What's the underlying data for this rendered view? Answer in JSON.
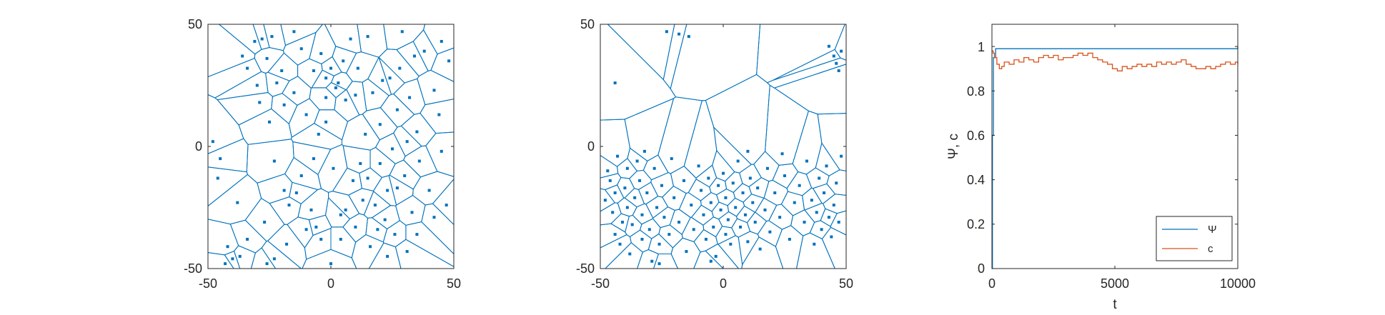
{
  "colors": {
    "blue": "#0072BD",
    "orange": "#D95319",
    "axis": "#262626"
  },
  "chart_data": [
    {
      "type": "scatter",
      "subtype": "voronoi",
      "title": "",
      "xlabel": "",
      "ylabel": "",
      "xlim": [
        -50,
        50
      ],
      "ylim": [
        -50,
        50
      ],
      "xticks": [
        "-50",
        "0",
        "50"
      ],
      "yticks": [
        "-50",
        "0",
        "50"
      ],
      "points": [
        [
          -48,
          2
        ],
        [
          -46,
          -13
        ],
        [
          -45,
          -5
        ],
        [
          -43,
          -48
        ],
        [
          -42,
          -41
        ],
        [
          -40,
          -46
        ],
        [
          -37,
          -45
        ],
        [
          -36,
          37
        ],
        [
          -34,
          32
        ],
        [
          -31,
          43
        ],
        [
          -30,
          25
        ],
        [
          -28,
          44
        ],
        [
          -29,
          18
        ],
        [
          -26,
          -48
        ],
        [
          -25,
          10
        ],
        [
          -26,
          36
        ],
        [
          -24,
          45
        ],
        [
          -23,
          -6
        ],
        [
          -23,
          -46
        ],
        [
          -22,
          26
        ],
        [
          -20,
          31
        ],
        [
          -19,
          17
        ],
        [
          -19,
          -18
        ],
        [
          -17,
          -24
        ],
        [
          -15,
          47
        ],
        [
          -15,
          22
        ],
        [
          -14,
          -19
        ],
        [
          -12,
          40
        ],
        [
          -10,
          13
        ],
        [
          -10,
          -34
        ],
        [
          -8,
          -26
        ],
        [
          -7,
          31
        ],
        [
          -6,
          -33
        ],
        [
          -4,
          38
        ],
        [
          -5,
          5
        ],
        [
          -4,
          -38
        ],
        [
          -2,
          20
        ],
        [
          -2,
          28
        ],
        [
          0,
          32
        ],
        [
          1,
          -9
        ],
        [
          2,
          24
        ],
        [
          3,
          26
        ],
        [
          4,
          -28
        ],
        [
          4,
          -38
        ],
        [
          5,
          35
        ],
        [
          6,
          19
        ],
        [
          6,
          -26
        ],
        [
          8,
          44
        ],
        [
          9,
          -14
        ],
        [
          10,
          -33
        ],
        [
          10,
          21
        ],
        [
          11,
          32
        ],
        [
          12,
          -7
        ],
        [
          13,
          -22
        ],
        [
          15,
          -13
        ],
        [
          15,
          45
        ],
        [
          16,
          -41
        ],
        [
          17,
          22
        ],
        [
          18,
          -24
        ],
        [
          19,
          -34
        ],
        [
          20,
          9
        ],
        [
          20,
          -7
        ],
        [
          21,
          27
        ],
        [
          22,
          -30
        ],
        [
          23,
          -45
        ],
        [
          24,
          28
        ],
        [
          25,
          -1
        ],
        [
          26,
          -36
        ],
        [
          27,
          -17
        ],
        [
          28,
          32
        ],
        [
          29,
          47
        ],
        [
          30,
          -12
        ],
        [
          31,
          2
        ],
        [
          32,
          20
        ],
        [
          33,
          -27
        ],
        [
          34,
          37
        ],
        [
          35,
          6
        ],
        [
          35,
          -36
        ],
        [
          36,
          -6
        ],
        [
          38,
          39
        ],
        [
          40,
          -18
        ],
        [
          42,
          23
        ],
        [
          42,
          -29
        ],
        [
          45,
          -2
        ],
        [
          45,
          43
        ],
        [
          47,
          -24
        ],
        [
          48,
          35
        ],
        [
          -34,
          -38
        ],
        [
          -38,
          -23
        ],
        [
          -12,
          -12
        ],
        [
          27,
          15
        ],
        [
          -27,
          -31
        ],
        [
          14,
          5
        ],
        [
          -7,
          -5
        ],
        [
          44,
          13
        ],
        [
          0,
          -48
        ],
        [
          -18,
          -40
        ],
        [
          -2,
          10
        ],
        [
          23,
          -18
        ],
        [
          31,
          -43
        ]
      ]
    },
    {
      "type": "scatter",
      "subtype": "voronoi",
      "title": "",
      "xlabel": "",
      "ylabel": "",
      "xlim": [
        -50,
        50
      ],
      "ylim": [
        -50,
        50
      ],
      "xticks": [
        "-50",
        "0",
        "50"
      ],
      "yticks": [
        "-50",
        "0",
        "50"
      ],
      "points": [
        [
          -48,
          -22
        ],
        [
          -47,
          -10
        ],
        [
          -46,
          -14
        ],
        [
          -45,
          -27
        ],
        [
          -44,
          -36
        ],
        [
          -44,
          -19
        ],
        [
          -43,
          -4
        ],
        [
          -42,
          -40
        ],
        [
          -41,
          -31
        ],
        [
          -40,
          -17
        ],
        [
          -39,
          -9
        ],
        [
          -39,
          -25
        ],
        [
          -38,
          -44
        ],
        [
          -37,
          -32
        ],
        [
          -36,
          -21
        ],
        [
          -35,
          -6
        ],
        [
          -34,
          -14
        ],
        [
          -33,
          -38
        ],
        [
          -33,
          -28
        ],
        [
          -31,
          -19
        ],
        [
          -30,
          -34
        ],
        [
          -29,
          -47
        ],
        [
          -28,
          -9
        ],
        [
          -27,
          -25
        ],
        [
          -26,
          -40
        ],
        [
          -25,
          -16
        ],
        [
          -24,
          -29
        ],
        [
          -22,
          -36
        ],
        [
          -21,
          -5
        ],
        [
          -20,
          -21
        ],
        [
          -18,
          -31
        ],
        [
          -16,
          -14
        ],
        [
          -15,
          -43
        ],
        [
          -13,
          -24
        ],
        [
          -12,
          -34
        ],
        [
          -10,
          -8
        ],
        [
          -9,
          -18
        ],
        [
          -8,
          -28
        ],
        [
          -7,
          -38
        ],
        [
          -6,
          -13
        ],
        [
          -5,
          -23
        ],
        [
          -4,
          -33
        ],
        [
          -3,
          -45
        ],
        [
          -2,
          -16
        ],
        [
          -1,
          -26
        ],
        [
          0,
          -11
        ],
        [
          1,
          -36
        ],
        [
          1,
          -21
        ],
        [
          2,
          -30
        ],
        [
          3,
          -40
        ],
        [
          4,
          -15
        ],
        [
          5,
          -25
        ],
        [
          6,
          -6
        ],
        [
          7,
          -33
        ],
        [
          8,
          -19
        ],
        [
          9,
          -28
        ],
        [
          10,
          -39
        ],
        [
          11,
          -13
        ],
        [
          12,
          -23
        ],
        [
          13,
          -31
        ],
        [
          14,
          -17
        ],
        [
          15,
          -42
        ],
        [
          17,
          -26
        ],
        [
          18,
          -9
        ],
        [
          19,
          -35
        ],
        [
          21,
          -19
        ],
        [
          23,
          -29
        ],
        [
          25,
          -12
        ],
        [
          27,
          -38
        ],
        [
          29,
          -23
        ],
        [
          31,
          -16
        ],
        [
          33,
          -31
        ],
        [
          34,
          -6
        ],
        [
          36,
          -22
        ],
        [
          37,
          -40
        ],
        [
          38,
          -27
        ],
        [
          39,
          -13
        ],
        [
          40,
          -34
        ],
        [
          41,
          -19
        ],
        [
          42,
          -8
        ],
        [
          43,
          -29
        ],
        [
          44,
          -37
        ],
        [
          45,
          -24
        ],
        [
          46,
          -15
        ],
        [
          47,
          -31
        ],
        [
          48,
          -4
        ],
        [
          -44,
          26
        ],
        [
          -23,
          47
        ],
        [
          -18,
          46
        ],
        [
          -14,
          45
        ],
        [
          43,
          41
        ],
        [
          45,
          37
        ],
        [
          46,
          34
        ],
        [
          47,
          31
        ],
        [
          48,
          39
        ],
        [
          -5,
          -47
        ],
        [
          -32,
          -2
        ],
        [
          10,
          -2
        ],
        [
          -26,
          -48
        ],
        [
          24,
          -3
        ]
      ]
    },
    {
      "type": "line",
      "title": "",
      "xlabel": "t",
      "ylabel": "Ψ, c",
      "xlim": [
        0,
        10000
      ],
      "ylim": [
        0,
        1.1
      ],
      "xticks": [
        "0",
        "5000",
        "10000"
      ],
      "yticks": [
        "0",
        "0.2",
        "0.4",
        "0.6",
        "0.8",
        "1"
      ],
      "legend": "bottom-right",
      "series": [
        {
          "name": "Ψ",
          "color": "#0072BD",
          "x": [
            0,
            20,
            60,
            150,
            400,
            1000,
            2000,
            3000,
            4000,
            5000,
            6000,
            7000,
            8000,
            9000,
            9600,
            10000
          ],
          "y": [
            0.0,
            0.6,
            0.95,
            0.99,
            0.99,
            0.99,
            0.99,
            0.99,
            0.99,
            0.99,
            0.99,
            0.99,
            0.99,
            0.99,
            0.99,
            1.0
          ]
        },
        {
          "name": "c",
          "color": "#D95319",
          "x": [
            0,
            50,
            100,
            200,
            300,
            400,
            500,
            700,
            900,
            1100,
            1300,
            1500,
            1700,
            1900,
            2100,
            2300,
            2500,
            2700,
            2900,
            3100,
            3300,
            3500,
            3700,
            3900,
            4100,
            4300,
            4500,
            4700,
            4900,
            5100,
            5300,
            5500,
            5700,
            5900,
            6100,
            6300,
            6500,
            6700,
            6900,
            7100,
            7300,
            7500,
            7700,
            7900,
            8100,
            8300,
            8500,
            8700,
            8900,
            9100,
            9300,
            9500,
            9700,
            9900,
            10000
          ],
          "y": [
            0.98,
            0.97,
            0.95,
            0.92,
            0.9,
            0.91,
            0.93,
            0.92,
            0.94,
            0.93,
            0.95,
            0.94,
            0.93,
            0.95,
            0.96,
            0.95,
            0.96,
            0.94,
            0.95,
            0.95,
            0.96,
            0.97,
            0.96,
            0.97,
            0.95,
            0.94,
            0.93,
            0.92,
            0.9,
            0.89,
            0.91,
            0.9,
            0.91,
            0.92,
            0.91,
            0.92,
            0.91,
            0.93,
            0.92,
            0.93,
            0.92,
            0.93,
            0.94,
            0.92,
            0.91,
            0.9,
            0.9,
            0.91,
            0.9,
            0.91,
            0.92,
            0.93,
            0.92,
            0.93,
            0.92
          ]
        }
      ]
    }
  ]
}
